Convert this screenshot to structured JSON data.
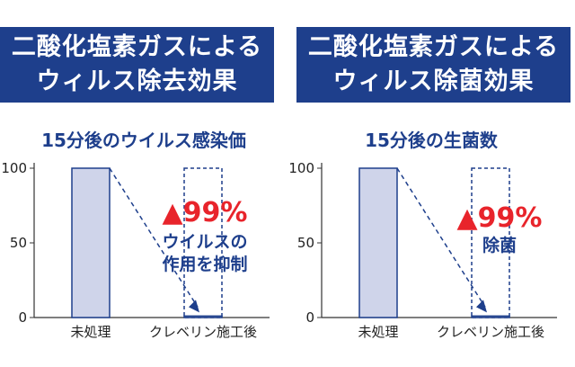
{
  "panels": [
    {
      "banner": [
        "二酸化塩素ガスによる",
        "ウィルス除去効果"
      ],
      "subtitle": "15分後のウイルス感染価",
      "reduction": "▲99%",
      "effect": [
        "ウイルスの",
        "作用を抑制"
      ]
    },
    {
      "banner": [
        "二酸化塩素ガスによる",
        "ウィルス除菌効果"
      ],
      "subtitle": "15分後の生菌数",
      "reduction": "▲99%",
      "effect": [
        "除菌"
      ]
    }
  ],
  "chart_data": [
    {
      "type": "bar",
      "title": "15分後のウイルス感染価",
      "categories": [
        "未処理",
        "クレベリン施工後"
      ],
      "values": [
        100,
        1
      ],
      "yticks": [
        0,
        50,
        100
      ],
      "ylim": [
        0,
        100
      ],
      "annotations": [
        "▲99%",
        "ウイルスの",
        "作用を抑制"
      ]
    },
    {
      "type": "bar",
      "title": "15分後の生菌数",
      "categories": [
        "未処理",
        "クレベリン施工後"
      ],
      "values": [
        100,
        1
      ],
      "yticks": [
        0,
        50,
        100
      ],
      "ylim": [
        0,
        100
      ],
      "annotations": [
        "▲99%",
        "除菌"
      ]
    }
  ],
  "colors": {
    "banner_bg": "#1e3f8c",
    "bar_fill": "#cfd4ea",
    "bar_stroke": "#1e3f8c",
    "accent_red": "#e8242b",
    "text_blue": "#1e3f8c"
  }
}
